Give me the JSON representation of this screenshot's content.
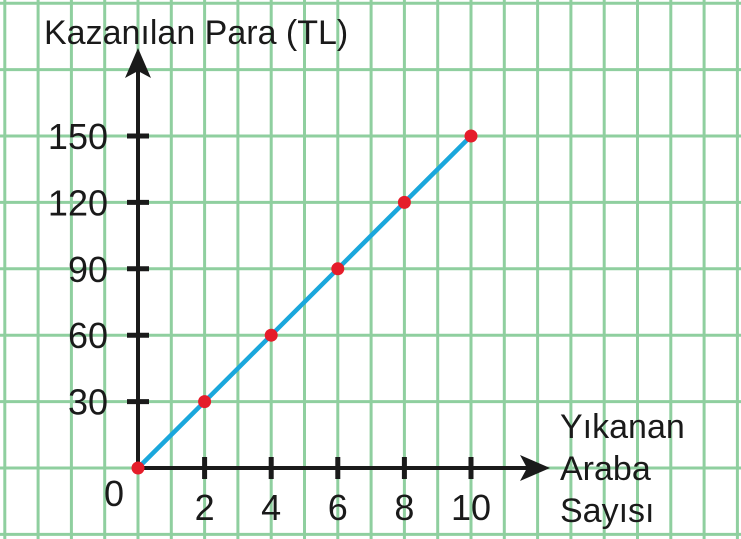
{
  "chart_data": {
    "type": "line",
    "ylabel": "Kazanılan Para (TL)",
    "xlabel_lines": [
      "Yıkanan",
      "Araba",
      "Sayısı"
    ],
    "origin_label": "0",
    "x": [
      0,
      2,
      4,
      6,
      8,
      10
    ],
    "y": [
      0,
      30,
      60,
      90,
      120,
      150
    ],
    "x_ticks": [
      2,
      4,
      6,
      8,
      10
    ],
    "y_ticks": [
      30,
      60,
      90,
      120,
      150
    ],
    "x_tick_labels": [
      "2",
      "4",
      "6",
      "8",
      "10"
    ],
    "y_tick_labels": [
      "30",
      "60",
      "90",
      "120",
      "150"
    ],
    "xlim": [
      0,
      10
    ],
    "ylim": [
      0,
      150
    ],
    "grid": true,
    "colors": {
      "grid": "#8fcf9f",
      "axis": "#1a1a1a",
      "line": "#1aa7dc",
      "point": "#e51d2a"
    }
  }
}
